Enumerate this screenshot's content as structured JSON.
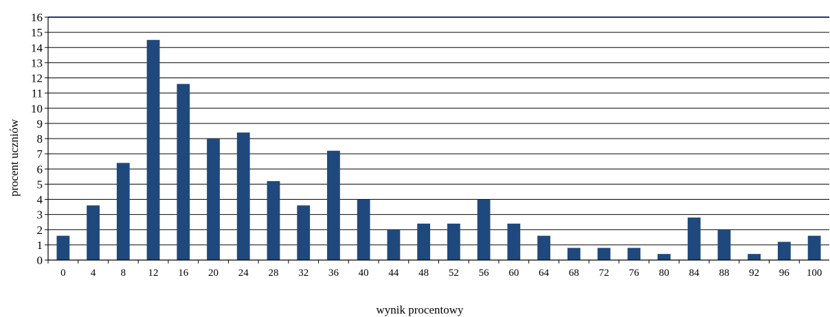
{
  "chart_data": {
    "type": "bar",
    "xlabel": "wynik procentowy",
    "ylabel": "procent uczniów",
    "ylim": [
      0,
      16
    ],
    "yticks": [
      0,
      1,
      2,
      3,
      4,
      5,
      6,
      7,
      8,
      9,
      10,
      11,
      12,
      13,
      14,
      15,
      16
    ],
    "grid": true,
    "legend": "none",
    "bar_color": "#1F497D",
    "categories": [
      "0",
      "4",
      "8",
      "12",
      "16",
      "20",
      "24",
      "28",
      "32",
      "36",
      "40",
      "44",
      "48",
      "52",
      "56",
      "60",
      "64",
      "68",
      "72",
      "76",
      "80",
      "84",
      "88",
      "92",
      "96",
      "100"
    ],
    "values": [
      1.6,
      3.6,
      6.4,
      14.5,
      11.6,
      8.0,
      8.4,
      5.2,
      3.6,
      7.2,
      4.0,
      2.0,
      2.4,
      2.4,
      4.0,
      2.4,
      1.6,
      0.8,
      0.8,
      0.8,
      0.4,
      2.8,
      2.0,
      0.4,
      1.2,
      1.6
    ]
  }
}
